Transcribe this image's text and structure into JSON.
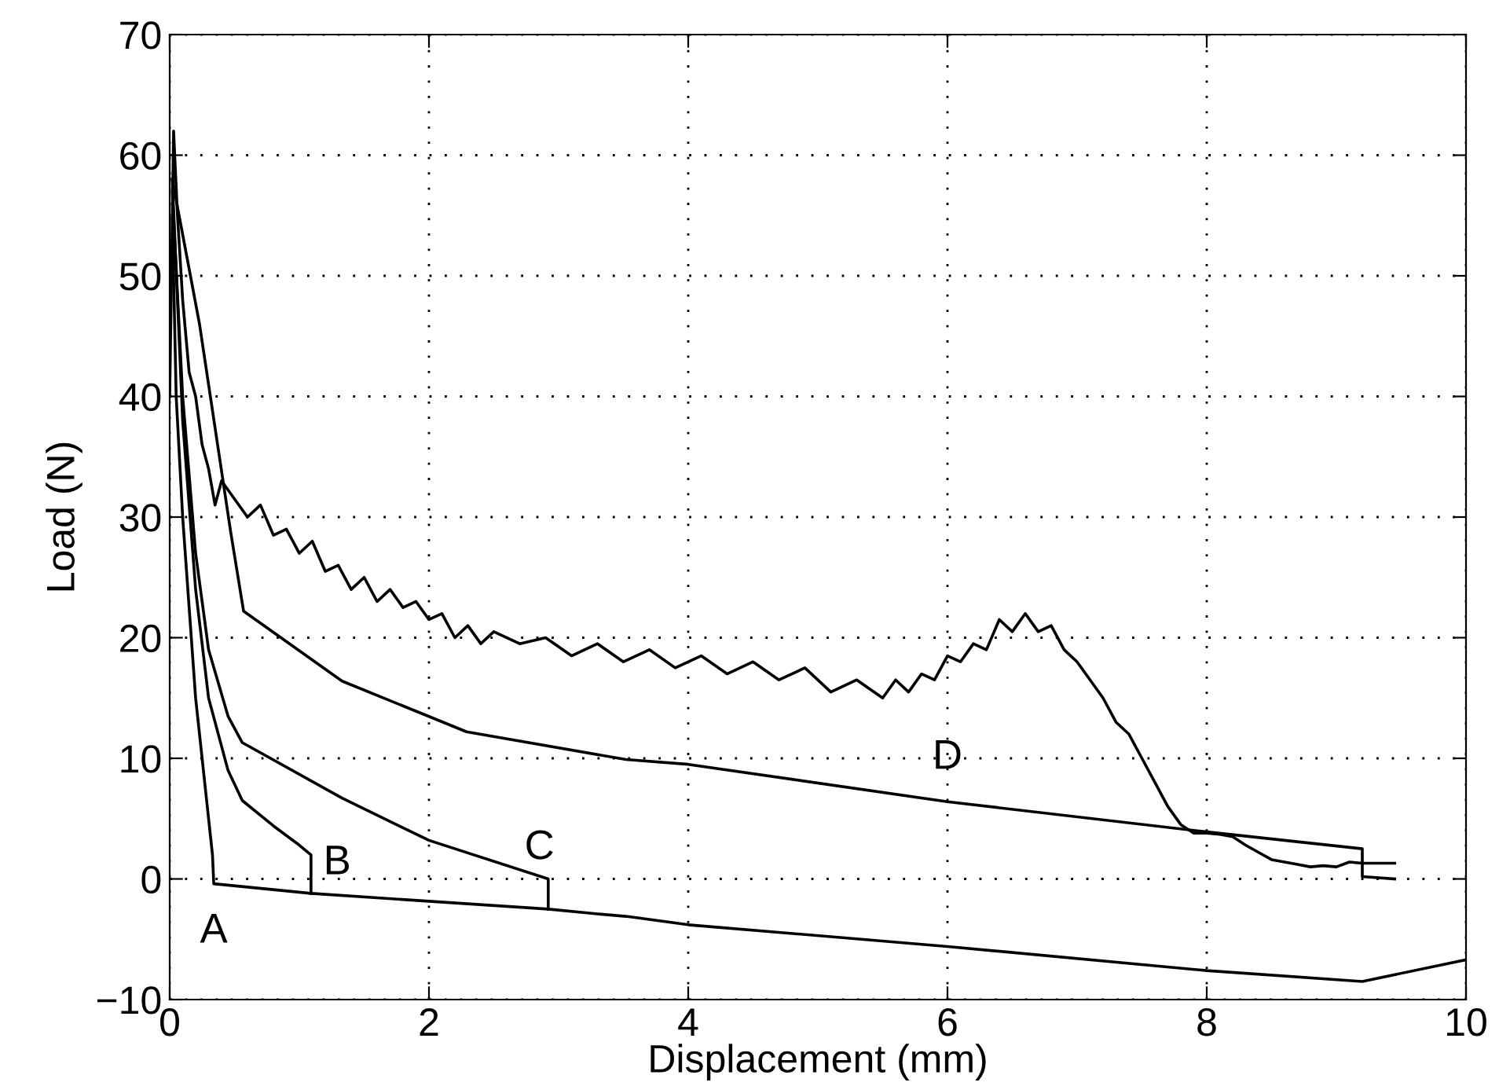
{
  "chart_data": {
    "type": "line",
    "xlabel": "Displacement (mm)",
    "ylabel": "Load (N)",
    "xlim": [
      0,
      10
    ],
    "ylim": [
      -10,
      70
    ],
    "xticks": [
      0,
      2,
      4,
      6,
      8,
      10
    ],
    "yticks": [
      -10,
      0,
      10,
      20,
      30,
      40,
      50,
      60,
      70
    ],
    "grid": true,
    "line_style": "solid",
    "marker": "none",
    "series": [
      {
        "name": "A",
        "color": "#000000",
        "x": [
          0.02,
          0.05,
          0.1,
          0.2,
          0.3,
          0.33,
          0.34,
          1.09,
          2.92,
          3.3,
          3.52,
          4,
          6,
          8,
          9.2,
          10
        ],
        "values": [
          55,
          40,
          30,
          15,
          5,
          2,
          -0.4,
          -1.2,
          -2.5,
          -2.9,
          -3.1,
          -3.8,
          -5.6,
          -7.6,
          -8.5,
          -6.7
        ]
      },
      {
        "name": "B",
        "color": "#000000",
        "x": [
          0.02,
          0.1,
          0.2,
          0.3,
          0.45,
          0.56,
          0.8,
          1.0,
          1.09,
          1.09
        ],
        "values": [
          58,
          38,
          24,
          15,
          9,
          6.5,
          4.4,
          2.8,
          2.0,
          -1.2
        ]
      },
      {
        "name": "C",
        "color": "#000000",
        "x": [
          0.02,
          0.1,
          0.2,
          0.3,
          0.45,
          0.56,
          1.33,
          2.0,
          2.92,
          2.92
        ],
        "values": [
          57,
          40,
          27,
          19,
          13.5,
          11.3,
          6.7,
          3.2,
          0,
          -2.5
        ]
      },
      {
        "name": "D",
        "color": "#000000",
        "x": [
          0.02,
          0.23,
          0.47,
          0.57,
          1.33,
          2.29,
          3.52,
          4,
          6,
          8,
          9.2,
          9.2,
          9.45
        ],
        "values": [
          58,
          46,
          28.8,
          22.2,
          16.4,
          12.2,
          9.9,
          9.5,
          6.4,
          3.9,
          2.5,
          0.2,
          0
        ]
      },
      {
        "color": "#000000",
        "x": [
          0.0,
          0.03,
          0.06,
          0.1,
          0.15,
          0.2,
          0.25,
          0.3,
          0.35,
          0.4,
          0.5,
          0.6,
          0.7,
          0.8,
          0.9,
          1.0,
          1.1,
          1.2,
          1.3,
          1.4,
          1.5,
          1.6,
          1.7,
          1.8,
          1.9,
          2.0,
          2.1,
          2.2,
          2.3,
          2.4,
          2.5,
          2.7,
          2.9,
          3.1,
          3.3,
          3.5,
          3.7,
          3.9,
          4.1,
          4.3,
          4.5,
          4.7,
          4.9,
          5.1,
          5.3,
          5.5,
          5.6,
          5.7,
          5.8,
          5.9,
          6.0,
          6.1,
          6.2,
          6.3,
          6.4,
          6.5,
          6.6,
          6.7,
          6.8,
          6.9,
          7.0,
          7.1,
          7.2,
          7.3,
          7.4,
          7.5,
          7.6,
          7.7,
          7.8,
          7.9,
          8.0,
          8.1,
          8.2,
          8.3,
          8.4,
          8.5,
          8.6,
          8.7,
          8.8,
          8.9,
          9.0,
          9.1,
          9.2,
          9.3,
          9.45
        ],
        "values": [
          40,
          62,
          55,
          48,
          42,
          40,
          36,
          34,
          31,
          33,
          31.5,
          30,
          31,
          28.5,
          29,
          27,
          28,
          25.5,
          26,
          24,
          25,
          23,
          24,
          22.5,
          23,
          21.5,
          22,
          20,
          21,
          19.5,
          20.5,
          19.5,
          20,
          18.5,
          19.5,
          18,
          19,
          17.5,
          18.5,
          17,
          18,
          16.5,
          17.5,
          15.5,
          16.5,
          15,
          16.5,
          15.5,
          17,
          16.5,
          18.5,
          18,
          19.5,
          19,
          21.5,
          20.5,
          22,
          20.5,
          21,
          19,
          18,
          16.5,
          15,
          13,
          12,
          10,
          8,
          6,
          4.5,
          3.8,
          3.8,
          3.7,
          3.5,
          2.8,
          2.2,
          1.6,
          1.4,
          1.2,
          1.0,
          1.1,
          1.0,
          1.4,
          1.3,
          1.3,
          1.3
        ]
      }
    ]
  }
}
